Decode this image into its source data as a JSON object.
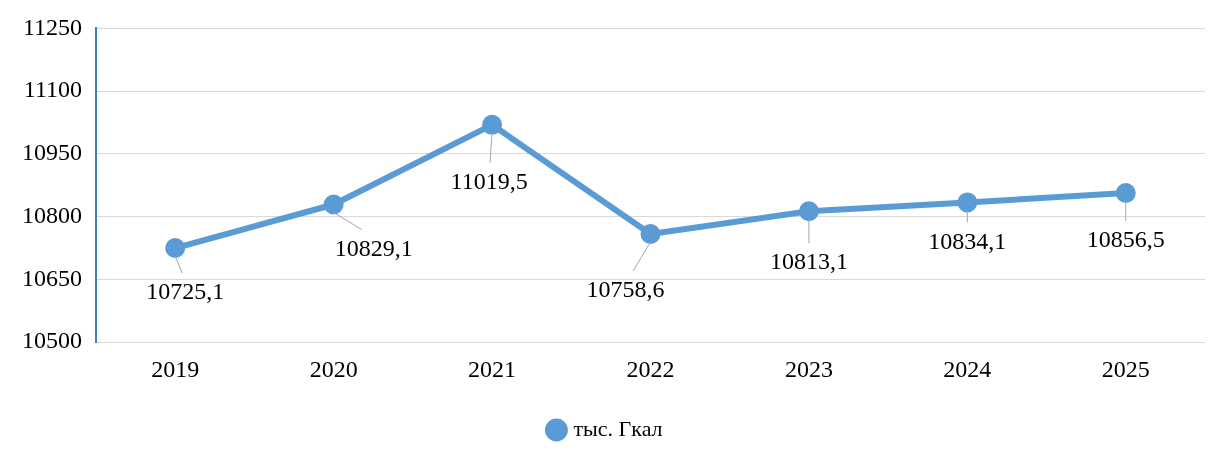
{
  "chart_data": {
    "type": "line",
    "categories": [
      "2019",
      "2020",
      "2021",
      "2022",
      "2023",
      "2024",
      "2025"
    ],
    "series": [
      {
        "name": "тыс. Гкал",
        "color": "#5b9bd5",
        "values": [
          10725.1,
          10829.1,
          11019.5,
          10758.6,
          10813.1,
          10834.1,
          10856.5
        ],
        "value_labels": [
          "10725,1",
          "10829,1",
          "11019,5",
          "10758,6",
          "10813,1",
          "10834,1",
          "10856,5"
        ]
      }
    ],
    "ylim": [
      10500,
      11250
    ],
    "yticks": [
      10500,
      10650,
      10800,
      10950,
      11100,
      11250
    ],
    "grid": "y",
    "legend": "bottom",
    "marker": "circle",
    "line_style": "solid"
  }
}
